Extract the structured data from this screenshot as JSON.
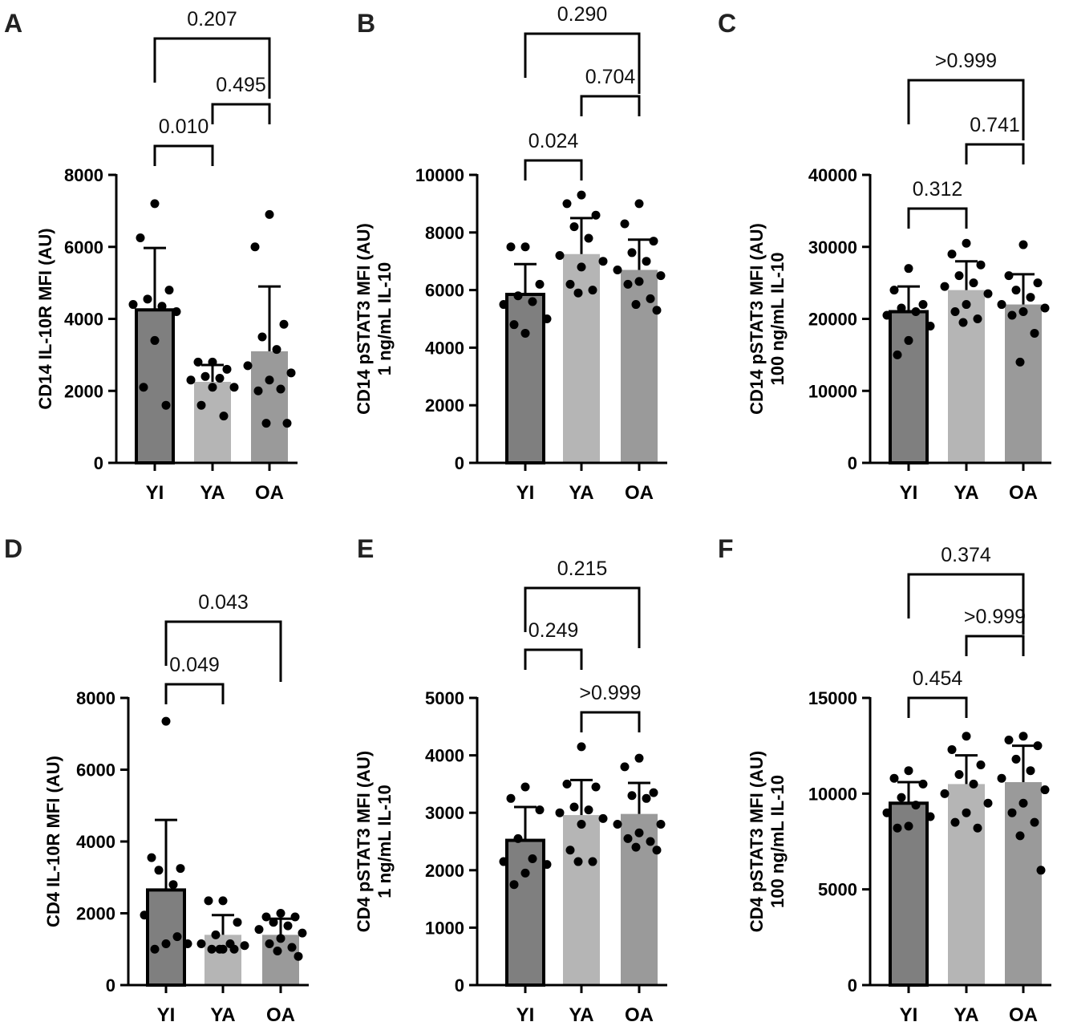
{
  "colors": {
    "YI": "#7f7f7f",
    "YA": "#b5b5b5",
    "OA": "#9a9a9a",
    "ink": "#000000"
  },
  "chart_data": [
    {
      "type": "bar",
      "panel": "A",
      "ylabel": [
        "CD14 IL-10R MFI (AU)"
      ],
      "ylim": [
        0,
        8000
      ],
      "yticks": [
        "0",
        "2000",
        "4000",
        "6000",
        "8000"
      ],
      "categories": [
        "YI",
        "YA",
        "OA"
      ],
      "means": [
        4250,
        2250,
        3100
      ],
      "sd_upper": [
        5970,
        2720,
        4900
      ],
      "points": [
        [
          7200,
          6250,
          4800,
          4550,
          4350,
          4400,
          4200,
          3400,
          2100,
          1600
        ],
        [
          2800,
          2800,
          2600,
          2400,
          2350,
          2300,
          2100,
          2100,
          1600,
          1300
        ],
        [
          6900,
          6000,
          3850,
          3500,
          3150,
          2700,
          2500,
          2300,
          2000,
          2050,
          1100,
          1100
        ]
      ],
      "comparisons": [
        {
          "pair": [
            "YI",
            "YA"
          ],
          "p": "0.010"
        },
        {
          "pair": [
            "YA",
            "OA"
          ],
          "p": "0.495"
        },
        {
          "pair": [
            "YI",
            "OA"
          ],
          "p": "0.207"
        }
      ]
    },
    {
      "type": "bar",
      "panel": "B",
      "ylabel": [
        "CD14 pSTAT3 MFI (AU)",
        "1 ng/mL IL-10"
      ],
      "ylim": [
        0,
        10000
      ],
      "yticks": [
        "0",
        "2000",
        "4000",
        "6000",
        "8000",
        "10000"
      ],
      "categories": [
        "YI",
        "YA",
        "OA"
      ],
      "means": [
        5850,
        7250,
        6700
      ],
      "sd_upper": [
        6900,
        8500,
        7750
      ],
      "points": [
        [
          7500,
          7500,
          6200,
          5800,
          5600,
          5500,
          5000,
          4500,
          4800
        ],
        [
          9300,
          9000,
          8600,
          8200,
          7800,
          7200,
          7000,
          6800,
          6200,
          6000,
          5900
        ],
        [
          9000,
          8300,
          7700,
          7300,
          7000,
          6700,
          6500,
          6300,
          6200,
          5700,
          5500,
          5300
        ]
      ],
      "comparisons": [
        {
          "pair": [
            "YI",
            "YA"
          ],
          "p": "0.024"
        },
        {
          "pair": [
            "YA",
            "OA"
          ],
          "p": "0.704"
        },
        {
          "pair": [
            "YI",
            "OA"
          ],
          "p": "0.290"
        }
      ]
    },
    {
      "type": "bar",
      "panel": "C",
      "ylabel": [
        "CD14 pSTAT3 MFI (AU)",
        "100 ng/mL IL-10"
      ],
      "ylim": [
        0,
        40000
      ],
      "yticks": [
        "0",
        "10000",
        "20000",
        "30000",
        "40000"
      ],
      "categories": [
        "YI",
        "YA",
        "OA"
      ],
      "means": [
        21000,
        24000,
        22000
      ],
      "sd_upper": [
        24500,
        28000,
        26200
      ],
      "points": [
        [
          27000,
          24000,
          22000,
          21500,
          21000,
          20500,
          19000,
          17000,
          15000
        ],
        [
          30500,
          29000,
          27500,
          26000,
          25000,
          24500,
          23500,
          22000,
          21000,
          20000,
          19500
        ],
        [
          30300,
          26000,
          25000,
          24000,
          23000,
          22000,
          21500,
          21000,
          20500,
          18000,
          14000
        ]
      ],
      "comparisons": [
        {
          "pair": [
            "YI",
            "YA"
          ],
          "p": "0.312"
        },
        {
          "pair": [
            "YA",
            "OA"
          ],
          "p": "0.741"
        },
        {
          "pair": [
            "YI",
            "OA"
          ],
          "p": ">0.999"
        }
      ]
    },
    {
      "type": "bar",
      "panel": "D",
      "ylabel": [
        "CD4 IL-10R MFI (AU)"
      ],
      "ylim": [
        0,
        8000
      ],
      "yticks": [
        "0",
        "2000",
        "4000",
        "6000",
        "8000"
      ],
      "categories": [
        "YI",
        "YA",
        "OA"
      ],
      "means": [
        2650,
        1400,
        1400
      ],
      "sd_upper": [
        4600,
        1950,
        1850
      ],
      "points": [
        [
          7350,
          3550,
          3250,
          3200,
          2800,
          1950,
          1150,
          1150,
          1000,
          1350
        ],
        [
          2350,
          2350,
          1750,
          1400,
          1150,
          1150,
          1100,
          1000,
          1000,
          1000,
          1000
        ],
        [
          2000,
          1900,
          1900,
          1750,
          1650,
          1550,
          1450,
          1300,
          1150,
          1050,
          950,
          800
        ]
      ],
      "comparisons": [
        {
          "pair": [
            "YI",
            "YA"
          ],
          "p": "0.049"
        },
        {
          "pair": [
            "YI",
            "OA"
          ],
          "p": "0.043"
        }
      ]
    },
    {
      "type": "bar",
      "panel": "E",
      "ylabel": [
        "CD4 pSTAT3 MFI (AU)",
        "1 ng/mL IL-10"
      ],
      "ylim": [
        0,
        5000
      ],
      "yticks": [
        "0",
        "1000",
        "2000",
        "3000",
        "4000",
        "5000"
      ],
      "categories": [
        "YI",
        "YA",
        "OA"
      ],
      "means": [
        2520,
        2960,
        2980
      ],
      "sd_upper": [
        3100,
        3570,
        3520
      ],
      "points": [
        [
          3450,
          3250,
          3050,
          2550,
          2200,
          2150,
          2100,
          1950,
          1750
        ],
        [
          4150,
          3500,
          3450,
          3100,
          3050,
          3000,
          2900,
          2800,
          2350,
          2150,
          2150
        ],
        [
          3950,
          3800,
          3350,
          3300,
          3250,
          2800,
          2800,
          2650,
          2550,
          2500,
          2400,
          2350
        ]
      ],
      "comparisons": [
        {
          "pair": [
            "YI",
            "YA"
          ],
          "p": "0.249"
        },
        {
          "pair": [
            "YA",
            "OA"
          ],
          "p": ">0.999"
        },
        {
          "pair": [
            "YI",
            "OA"
          ],
          "p": "0.215"
        }
      ]
    },
    {
      "type": "bar",
      "panel": "F",
      "ylabel": [
        "CD4 pSTAT3 MFI (AU)",
        "100 ng/mL IL-10"
      ],
      "ylim": [
        0,
        15000
      ],
      "yticks": [
        "0",
        "5000",
        "10000",
        "15000"
      ],
      "categories": [
        "YI",
        "YA",
        "OA"
      ],
      "means": [
        9500,
        10500,
        10600
      ],
      "sd_upper": [
        10600,
        12000,
        12500
      ],
      "points": [
        [
          11200,
          10800,
          10500,
          9800,
          9400,
          9000,
          8800,
          8300,
          8200
        ],
        [
          13000,
          12300,
          11500,
          11000,
          10500,
          10000,
          9500,
          9000,
          8500,
          8200
        ],
        [
          13000,
          12800,
          12500,
          11800,
          11200,
          10800,
          10200,
          9500,
          9000,
          8500,
          7800,
          6000
        ]
      ],
      "comparisons": [
        {
          "pair": [
            "YI",
            "YA"
          ],
          "p": "0.454"
        },
        {
          "pair": [
            "YA",
            "OA"
          ],
          "p": ">0.999"
        },
        {
          "pair": [
            "YI",
            "OA"
          ],
          "p": "0.374"
        }
      ]
    }
  ]
}
